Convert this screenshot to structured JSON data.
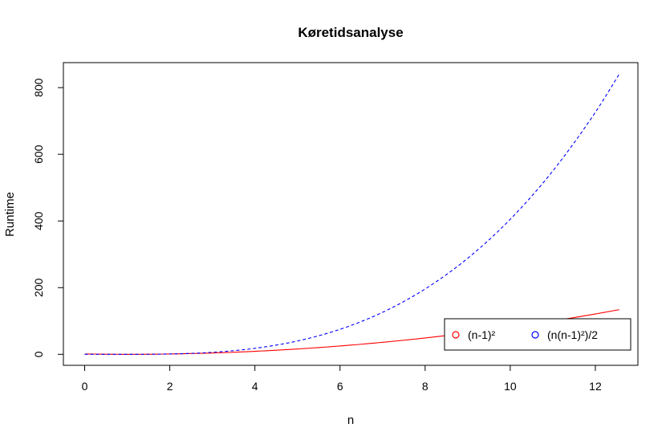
{
  "chart_data": {
    "type": "line",
    "title": "Køretidsanalyse",
    "xlabel": "n",
    "ylabel": "Runtime",
    "xlim": [
      -0.5,
      13.0
    ],
    "ylim": [
      -33,
      875
    ],
    "x_ticks": [
      0,
      2,
      4,
      6,
      8,
      10,
      12
    ],
    "y_ticks": [
      0,
      200,
      400,
      600,
      800
    ],
    "x_tick_labels": [
      "0",
      "2",
      "4",
      "6",
      "8",
      "10",
      "12"
    ],
    "y_tick_labels": [
      "0",
      "200",
      "400",
      "600",
      "800"
    ],
    "grid": false,
    "legend_position": "bottom-right",
    "x": [
      0,
      1,
      2,
      3,
      4,
      5,
      6,
      7,
      8,
      9,
      10,
      11,
      12,
      12.56
    ],
    "series": [
      {
        "name": "(n-1)²",
        "color": "#ff0000",
        "dash": "solid",
        "values": [
          1,
          0,
          1,
          4,
          9,
          16,
          25,
          36,
          49,
          64,
          81,
          100,
          121,
          134
        ]
      },
      {
        "name": "(n(n-1)²)/2",
        "color": "#0000ff",
        "dash": "dashed",
        "values": [
          0,
          0,
          1,
          6,
          18,
          40,
          75,
          126,
          196,
          288,
          405,
          550,
          726,
          840
        ]
      }
    ]
  }
}
